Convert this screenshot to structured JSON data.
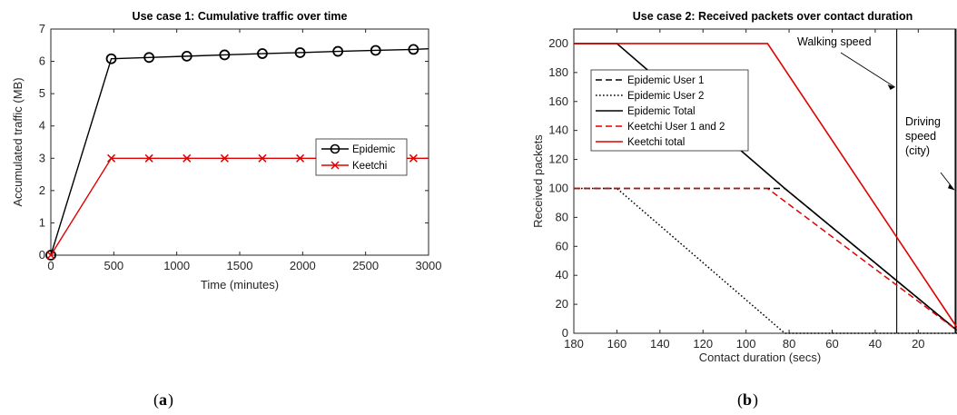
{
  "chart_data": [
    {
      "type": "line",
      "title": "Use case 1: Cumulative traffic over time",
      "xlabel": "Time (minutes)",
      "ylabel": "Accumulated traffic (MB)",
      "xlim": [
        0,
        3000
      ],
      "ylim": [
        0,
        7
      ],
      "xticks": [
        0,
        500,
        1000,
        1500,
        2000,
        2500,
        3000
      ],
      "yticks": [
        0,
        1,
        2,
        3,
        4,
        5,
        6,
        7
      ],
      "grid": false,
      "legend_position": "center-right",
      "series": [
        {
          "name": "Epidemic",
          "color": "#000000",
          "marker": "circle",
          "x": [
            0,
            480,
            780,
            1080,
            1380,
            1680,
            1980,
            2280,
            2580,
            2880,
            3000
          ],
          "y": [
            0,
            6.08,
            6.12,
            6.16,
            6.2,
            6.24,
            6.27,
            6.31,
            6.34,
            6.37,
            6.39
          ],
          "marker_indices": [
            0,
            1,
            2,
            3,
            4,
            5,
            6,
            7,
            8,
            9
          ]
        },
        {
          "name": "Keetchi",
          "color": "#e00000",
          "marker": "x",
          "x": [
            0,
            480,
            780,
            1080,
            1380,
            1680,
            1980,
            2280,
            2580,
            2880,
            3000
          ],
          "y": [
            0,
            3,
            3,
            3,
            3,
            3,
            3,
            3,
            3,
            3,
            3
          ],
          "marker_indices": [
            0,
            1,
            2,
            3,
            4,
            5,
            6,
            7,
            8,
            9
          ]
        }
      ]
    },
    {
      "type": "line",
      "title": "Use case 2: Received packets over contact duration",
      "xlabel": "Contact duration (secs)",
      "ylabel": "Received packets",
      "xlim": [
        180,
        2
      ],
      "x_reversed": true,
      "ylim": [
        0,
        210
      ],
      "xticks": [
        180,
        160,
        140,
        120,
        100,
        80,
        60,
        40,
        20
      ],
      "yticks": [
        0,
        20,
        40,
        60,
        80,
        100,
        120,
        140,
        160,
        180,
        200
      ],
      "grid": false,
      "legend_position": "top-left",
      "series": [
        {
          "name": "Epidemic User 1",
          "color": "#000000",
          "dash": "dashed",
          "x": [
            180,
            82,
            2
          ],
          "y": [
            100,
            100,
            2
          ]
        },
        {
          "name": "Epidemic User 2",
          "color": "#000000",
          "dash": "dotted",
          "x": [
            180,
            160,
            82,
            2
          ],
          "y": [
            100,
            100,
            0,
            0
          ]
        },
        {
          "name": "Epidemic Total",
          "color": "#000000",
          "dash": "solid",
          "x": [
            180,
            160,
            82,
            2
          ],
          "y": [
            200,
            200,
            100,
            2
          ]
        },
        {
          "name": "Keetchi User 1 and 2",
          "color": "#e00000",
          "dash": "dashed",
          "x": [
            180,
            90,
            2
          ],
          "y": [
            100,
            100,
            2
          ]
        },
        {
          "name": "Keetchi total",
          "color": "#e00000",
          "dash": "solid",
          "x": [
            180,
            90,
            2
          ],
          "y": [
            200,
            200,
            4
          ]
        }
      ],
      "vlines": [
        30,
        2
      ],
      "annotations": [
        {
          "text": "Walking speed",
          "at_x": 30,
          "at_y": 168
        },
        {
          "text_lines": [
            "Driving",
            "speed",
            "(city)"
          ],
          "at_x": 2,
          "at_y": 97
        }
      ]
    }
  ],
  "captions": {
    "a": "a",
    "b": "b"
  }
}
